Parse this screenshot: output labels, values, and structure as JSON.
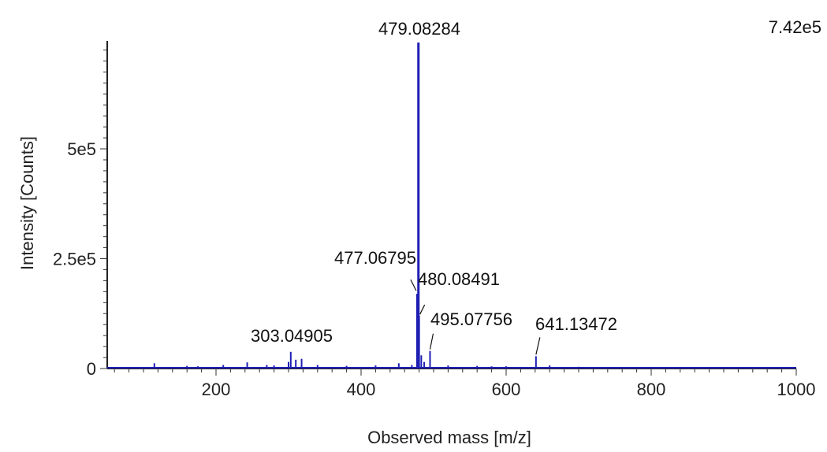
{
  "chart_data": {
    "type": "line",
    "title": "",
    "xlabel": "Observed mass [m/z]",
    "ylabel": "Intensity [Counts]",
    "xlim": [
      50,
      1000
    ],
    "ylim": [
      0,
      742000
    ],
    "x_ticks": [
      200,
      400,
      600,
      800,
      1000
    ],
    "x_tick_labels": [
      "200",
      "400",
      "600",
      "800",
      "1000"
    ],
    "y_ticks": [
      0,
      250000,
      500000
    ],
    "y_tick_labels": [
      "0",
      "2.5e5",
      "5e5"
    ],
    "max_intensity_label": "7.42e5",
    "line_color": "#1f1fb4",
    "grid": false,
    "series": [
      {
        "x": [
          115,
          160,
          175,
          210,
          243,
          270,
          280,
          300,
          303.04905,
          310,
          318,
          340,
          380,
          420,
          452,
          470,
          477.06795,
          479.08284,
          480.08491,
          483,
          487,
          495.07756,
          520,
          560,
          580,
          600,
          641.13472,
          660,
          700,
          750,
          800,
          900
        ],
        "y": [
          12000,
          6000,
          5000,
          8000,
          14000,
          8000,
          7000,
          15000,
          38000,
          20000,
          22000,
          8000,
          6000,
          7000,
          12000,
          8000,
          170000,
          742000,
          120000,
          30000,
          15000,
          40000,
          7000,
          6000,
          5000,
          5000,
          28000,
          7000,
          4000,
          3000,
          3000,
          2000
        ]
      }
    ],
    "annotations": [
      {
        "text": "479.08284",
        "x": 479.08284,
        "y": 742000
      },
      {
        "text": "477.06795",
        "x": 477.06795,
        "y": 170000
      },
      {
        "text": "480.08491",
        "x": 480.08491,
        "y": 120000
      },
      {
        "text": "495.07756",
        "x": 495.07756,
        "y": 40000
      },
      {
        "text": "303.04905",
        "x": 303.04905,
        "y": 38000
      },
      {
        "text": "641.13472",
        "x": 641.13472,
        "y": 28000
      }
    ]
  }
}
